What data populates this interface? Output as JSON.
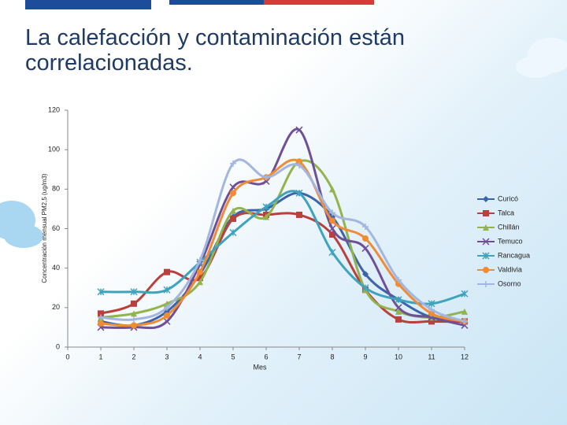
{
  "chart_data": {
    "type": "line",
    "title": "La calefacción y contaminación están correlacionadas.",
    "x_label": "Mes",
    "y_label": "Concentración mensual PM2,5 (ug/m3)",
    "x": [
      1,
      2,
      3,
      4,
      5,
      6,
      7,
      8,
      9,
      10,
      11,
      12
    ],
    "xlim": [
      0,
      12
    ],
    "xticks": [
      0,
      1,
      2,
      3,
      4,
      5,
      6,
      7,
      8,
      9,
      10,
      11,
      12
    ],
    "ylim": [
      0,
      120
    ],
    "yticks": [
      0,
      20,
      40,
      60,
      80,
      100,
      120
    ],
    "smooth": true,
    "series": [
      {
        "name": "Curicó",
        "color": "#3c64a8",
        "marker": "diamond",
        "values": [
          13,
          11,
          18,
          37,
          66,
          70,
          78,
          66,
          37,
          24,
          15,
          13
        ]
      },
      {
        "name": "Talca",
        "color": "#b8413d",
        "marker": "square",
        "values": [
          17,
          22,
          38,
          35,
          65,
          67,
          67,
          57,
          29,
          14,
          13,
          13
        ]
      },
      {
        "name": "Chillán",
        "color": "#93b34f",
        "marker": "triangle",
        "values": [
          15,
          17,
          22,
          33,
          69,
          66,
          94,
          80,
          29,
          18,
          15,
          18
        ]
      },
      {
        "name": "Temuco",
        "color": "#6f4f96",
        "marker": "x",
        "values": [
          10,
          10,
          13,
          42,
          81,
          84,
          110,
          60,
          50,
          20,
          15,
          11
        ]
      },
      {
        "name": "Rancagua",
        "color": "#3fa3bd",
        "marker": "star",
        "values": [
          28,
          28,
          29,
          43,
          58,
          71,
          78,
          48,
          30,
          24,
          22,
          27
        ]
      },
      {
        "name": "Valdivia",
        "color": "#f08b36",
        "marker": "circle",
        "values": [
          12,
          11,
          16,
          38,
          78,
          86,
          94,
          64,
          55,
          32,
          17,
          13
        ]
      },
      {
        "name": "Osorno",
        "color": "#a3b6e0",
        "marker": "plus",
        "values": [
          15,
          14,
          20,
          44,
          93,
          86,
          92,
          68,
          61,
          34,
          19,
          13
        ]
      }
    ]
  }
}
